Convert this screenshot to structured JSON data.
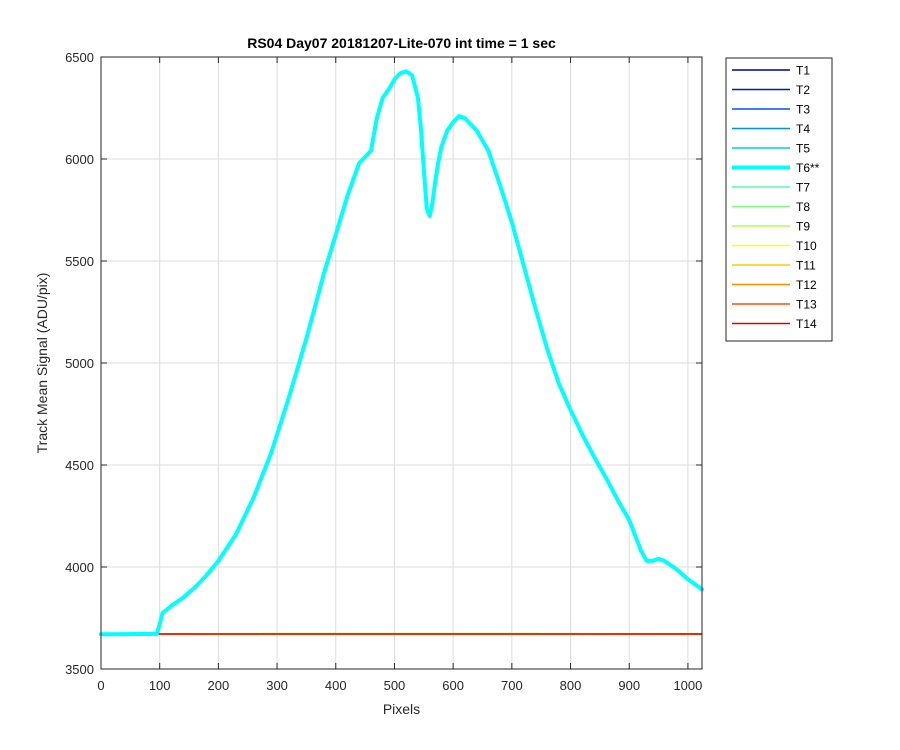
{
  "chart_data": {
    "type": "line",
    "title": "RS04 Day07 20181207-Lite-070 int time = 1 sec",
    "xlabel": "Pixels",
    "ylabel": "Track Mean Signal (ADU/pix)",
    "xlim": [
      0,
      1024
    ],
    "ylim": [
      3500,
      6500
    ],
    "xticks": [
      0,
      100,
      200,
      300,
      400,
      500,
      600,
      700,
      800,
      900,
      1000
    ],
    "yticks": [
      3500,
      4000,
      4500,
      5000,
      5500,
      6000,
      6500
    ],
    "grid": true,
    "legend_position": "outside-top-right",
    "series": [
      {
        "name": "T1",
        "color": "#00007f",
        "highlight": false
      },
      {
        "name": "T2",
        "color": "#0012d9",
        "highlight": false
      },
      {
        "name": "T3",
        "color": "#0050ff",
        "highlight": false
      },
      {
        "name": "T4",
        "color": "#008cff",
        "highlight": false
      },
      {
        "name": "T5",
        "color": "#00c8ff",
        "highlight": false
      },
      {
        "name": "T6**",
        "color": "#00ffff",
        "highlight": true,
        "x": [
          0,
          95,
          100,
          105,
          120,
          140,
          160,
          180,
          200,
          230,
          260,
          290,
          320,
          350,
          380,
          400,
          420,
          440,
          450,
          460,
          470,
          480,
          490,
          500,
          510,
          520,
          530,
          540,
          545,
          550,
          555,
          560,
          565,
          570,
          575,
          580,
          590,
          600,
          610,
          620,
          640,
          660,
          680,
          700,
          720,
          740,
          760,
          780,
          800,
          820,
          840,
          860,
          880,
          900,
          920,
          930,
          935,
          940,
          950,
          960,
          980,
          1000,
          1024
        ],
        "y": [
          3670,
          3672,
          3720,
          3775,
          3810,
          3850,
          3900,
          3960,
          4030,
          4160,
          4340,
          4560,
          4830,
          5120,
          5440,
          5630,
          5820,
          5980,
          6010,
          6040,
          6200,
          6300,
          6340,
          6390,
          6420,
          6430,
          6410,
          6300,
          6150,
          5950,
          5760,
          5720,
          5790,
          5900,
          5990,
          6060,
          6140,
          6180,
          6210,
          6200,
          6140,
          6040,
          5870,
          5690,
          5480,
          5270,
          5070,
          4900,
          4770,
          4650,
          4540,
          4440,
          4330,
          4230,
          4080,
          4030,
          4030,
          4030,
          4040,
          4030,
          3990,
          3940,
          3890
        ]
      },
      {
        "name": "T7",
        "color": "#4fffaf",
        "highlight": false
      },
      {
        "name": "T8",
        "color": "#7fff7f",
        "highlight": false
      },
      {
        "name": "T9",
        "color": "#afff4f",
        "highlight": false
      },
      {
        "name": "T10",
        "color": "#ffff00",
        "highlight": false
      },
      {
        "name": "T11",
        "color": "#ffc800",
        "highlight": false
      },
      {
        "name": "T12",
        "color": "#ff8c00",
        "highlight": false
      },
      {
        "name": "T13",
        "color": "#ff4f00",
        "highlight": false
      },
      {
        "name": "T14",
        "color": "#df0000",
        "highlight": false
      }
    ],
    "baseline_series_value": 3670
  }
}
